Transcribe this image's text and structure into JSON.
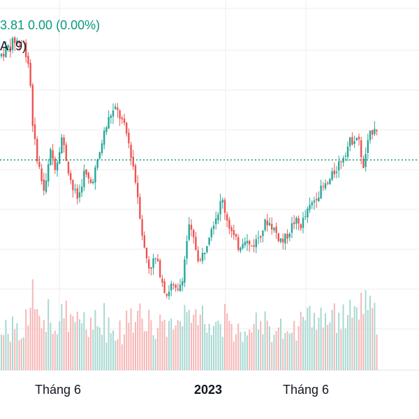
{
  "legend": {
    "price_text": "3.81  0.00 (0.00%)",
    "ma_text": "A, 9)"
  },
  "colors": {
    "up": "#26a69a",
    "down": "#ef5350",
    "up_volume": "#a8d8d2",
    "down_volume": "#f7b6b5",
    "grid": "#eeeeee",
    "price_line": "#089981",
    "text": "#131722"
  },
  "chart_data": {
    "type": "candlestick",
    "title": "",
    "xlabel": "",
    "ylabel": "",
    "x_ticks": [
      {
        "label": "Tháng 6",
        "bold": false
      },
      {
        "label": "2023",
        "bold": true
      },
      {
        "label": "Tháng 6",
        "bold": false
      }
    ],
    "grid": true,
    "current_price_line": "dotted",
    "volume_bars": true,
    "price_path_keypoints": [
      [
        0,
        92
      ],
      [
        10,
        95
      ],
      [
        22,
        98
      ],
      [
        34,
        97
      ],
      [
        42,
        88
      ],
      [
        48,
        62
      ],
      [
        56,
        50
      ],
      [
        64,
        40
      ],
      [
        72,
        56
      ],
      [
        80,
        50
      ],
      [
        88,
        62
      ],
      [
        96,
        52
      ],
      [
        104,
        42
      ],
      [
        112,
        38
      ],
      [
        120,
        48
      ],
      [
        130,
        44
      ],
      [
        140,
        52
      ],
      [
        148,
        62
      ],
      [
        158,
        70
      ],
      [
        166,
        72
      ],
      [
        174,
        68
      ],
      [
        182,
        62
      ],
      [
        190,
        52
      ],
      [
        198,
        38
      ],
      [
        206,
        20
      ],
      [
        214,
        12
      ],
      [
        222,
        16
      ],
      [
        230,
        10
      ],
      [
        238,
        2
      ],
      [
        246,
        6
      ],
      [
        254,
        2
      ],
      [
        262,
        10
      ],
      [
        270,
        28
      ],
      [
        278,
        22
      ],
      [
        286,
        14
      ],
      [
        294,
        20
      ],
      [
        302,
        28
      ],
      [
        310,
        32
      ],
      [
        318,
        38
      ],
      [
        326,
        30
      ],
      [
        334,
        24
      ],
      [
        342,
        20
      ],
      [
        350,
        24
      ],
      [
        358,
        20
      ],
      [
        366,
        22
      ],
      [
        374,
        26
      ],
      [
        382,
        30
      ],
      [
        390,
        28
      ],
      [
        398,
        24
      ],
      [
        406,
        22
      ],
      [
        414,
        26
      ],
      [
        422,
        30
      ],
      [
        430,
        28
      ],
      [
        438,
        32
      ],
      [
        446,
        36
      ],
      [
        454,
        40
      ],
      [
        462,
        42
      ],
      [
        470,
        44
      ],
      [
        478,
        48
      ],
      [
        486,
        52
      ],
      [
        494,
        56
      ],
      [
        502,
        60
      ],
      [
        510,
        62
      ],
      [
        516,
        58
      ],
      [
        520,
        48
      ],
      [
        524,
        56
      ],
      [
        530,
        62
      ],
      [
        536,
        66
      ],
      [
        542,
        64
      ]
    ]
  }
}
